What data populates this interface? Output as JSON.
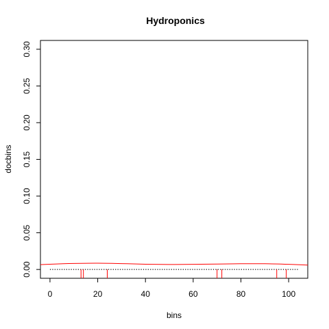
{
  "chart_data": {
    "type": "line",
    "title": "Hydroponics",
    "xlabel": "bins",
    "ylabel": "docbins",
    "xlim": [
      -4,
      108
    ],
    "ylim": [
      -0.012,
      0.312
    ],
    "x_ticks": [
      0,
      20,
      40,
      60,
      80,
      100
    ],
    "x_tick_labels": [
      "0",
      "20",
      "40",
      "60",
      "80",
      "100"
    ],
    "y_ticks": [
      0.0,
      0.05,
      0.1,
      0.15,
      0.2,
      0.25,
      0.3
    ],
    "y_tick_labels": [
      "0.00",
      "0.05",
      "0.10",
      "0.15",
      "0.20",
      "0.25",
      "0.30"
    ],
    "grid": false,
    "series": [
      {
        "kind": "density-curve",
        "color": "#ff0000",
        "x": [
          -4,
          0,
          10,
          20,
          30,
          40,
          50,
          60,
          70,
          80,
          90,
          100,
          108
        ],
        "y": [
          0.0065,
          0.0072,
          0.0082,
          0.0085,
          0.008,
          0.0072,
          0.0068,
          0.007,
          0.0074,
          0.0078,
          0.0078,
          0.007,
          0.006
        ]
      },
      {
        "kind": "dotted-baseline",
        "color": "#000000",
        "x": [
          0,
          104
        ],
        "y": [
          0,
          0
        ]
      },
      {
        "kind": "rug",
        "color": "#ff0000",
        "x": [
          13,
          14,
          24,
          70,
          72,
          95,
          99
        ]
      }
    ]
  }
}
